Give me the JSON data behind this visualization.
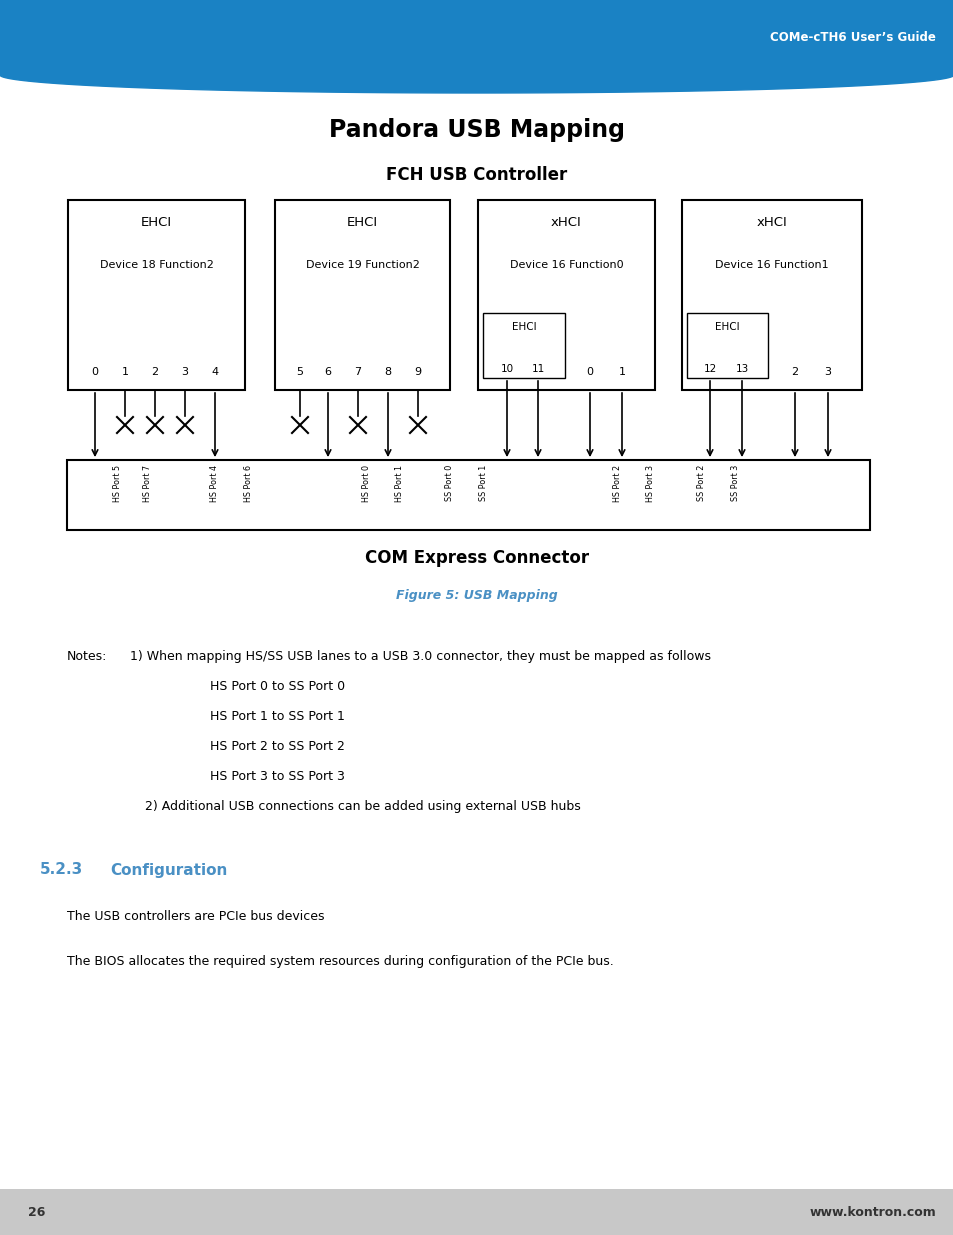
{
  "page_title": "Pandora USB Mapping",
  "header_text": "COMe-cTH6 User’s Guide",
  "header_bg": "#1a82c4",
  "fch_label": "FCH USB Controller",
  "com_label": "COM Express Connector",
  "figure_label": "Figure 5: USB Mapping",
  "figure_label_color": "#4a90c4",
  "section_num": "5.2.3",
  "section_title": "Configuration",
  "section_color": "#4a90c4",
  "body_text1": "The USB controllers are PCIe bus devices",
  "body_text2": "The BIOS allocates the required system resources during configuration of the PCIe bus.",
  "notes_line1": "Notes:   1) When mapping HS/SS USB lanes to a USB 3.0 connector, they must be mapped as follows",
  "notes_lines": [
    "HS Port 0 to SS Port 0",
    "HS Port 1 to SS Port 1",
    "HS Port 2 to SS Port 2",
    "HS Port 3 to SS Port 3"
  ],
  "notes_line2": "2) Additional USB connections can be added using external USB hubs",
  "footer_page": "26",
  "footer_url": "www.kontron.com"
}
